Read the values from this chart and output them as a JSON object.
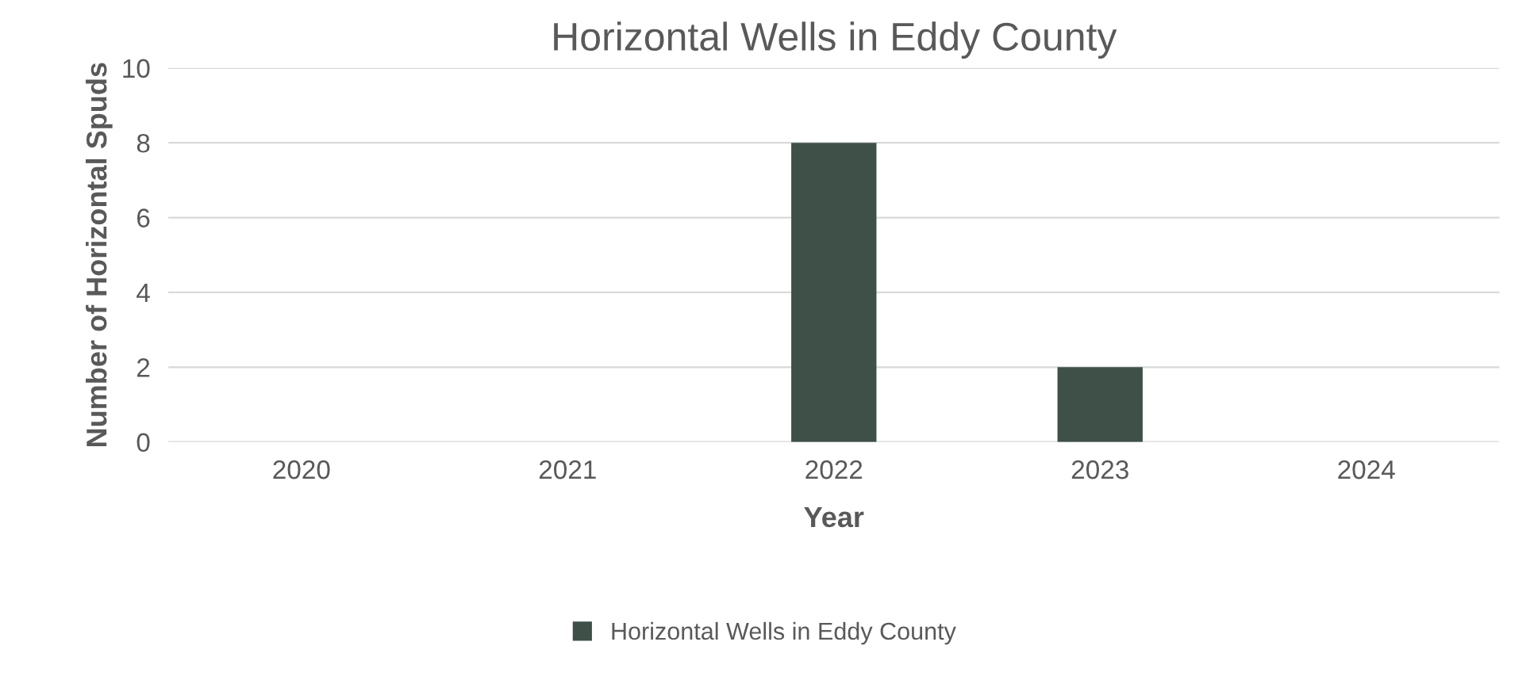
{
  "chart_data": {
    "type": "bar",
    "title": "Horizontal Wells in Eddy County",
    "xlabel": "Year",
    "ylabel": "Number of Horizontal Spuds",
    "categories": [
      "2020",
      "2021",
      "2022",
      "2023",
      "2024"
    ],
    "series": [
      {
        "name": "Horizontal Wells in Eddy County",
        "color": "#3e5048",
        "values": [
          0,
          0,
          8,
          2,
          0
        ]
      }
    ],
    "ylim": [
      0,
      10
    ],
    "yticks": [
      0,
      2,
      4,
      6,
      8,
      10
    ],
    "grid": "y",
    "legend": "bottom"
  }
}
